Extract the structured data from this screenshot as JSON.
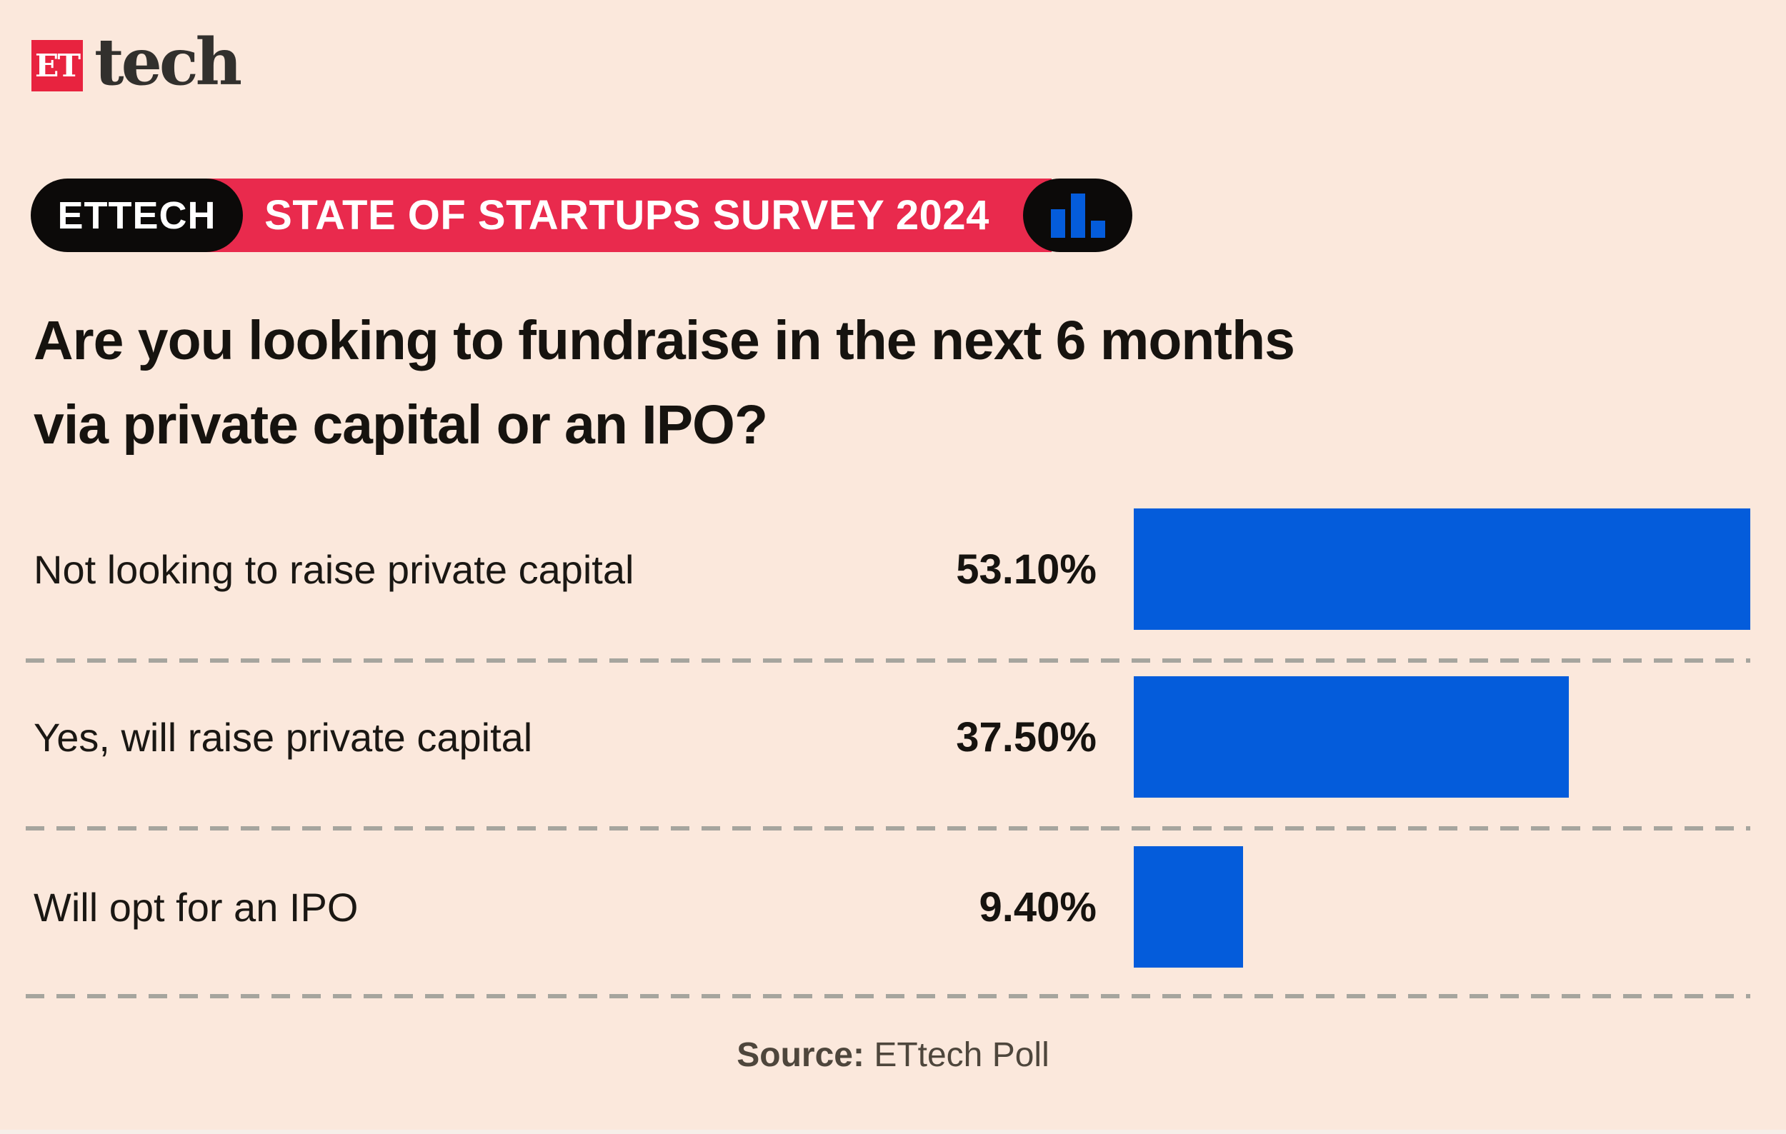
{
  "page": {
    "background_color": "#fbe8dc",
    "accent_blue": "#045cdb",
    "accent_red": "#e92a4d",
    "logo_red": "#e8233f"
  },
  "logo": {
    "et": "ET",
    "tech": "tech"
  },
  "badge": {
    "left_label": "ETTECH",
    "title": "STATE OF STARTUPS SURVEY 2024",
    "icon": "bar-chart-icon"
  },
  "title": {
    "line1": "Are you looking to fundraise in the next 6 months",
    "line2": "via private capital or an IPO?"
  },
  "source": {
    "label": "Source:",
    "value": "ETtech Poll"
  },
  "chart_data": {
    "type": "bar",
    "orientation": "horizontal",
    "title": "Are you looking to fundraise in the next 6 months via private capital or an IPO?",
    "categories": [
      "Not looking to raise private capital",
      "Yes, will raise private capital",
      "Will opt for an IPO"
    ],
    "values": [
      53.1,
      37.5,
      9.4
    ],
    "value_labels": [
      "53.10%",
      "37.50%",
      "9.40%"
    ],
    "bar_color": "#045cdb",
    "xlim": [
      0,
      53.1
    ],
    "grid": false,
    "legend": false,
    "source": "ETtech Poll"
  }
}
